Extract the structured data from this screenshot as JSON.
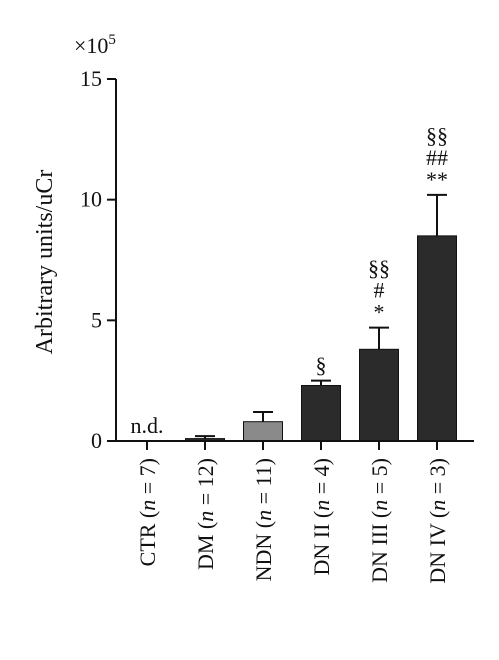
{
  "chart_data": {
    "type": "bar",
    "ylabel": "Arbitrary units/uCr",
    "y_multiplier": "×10",
    "y_multiplier_exp": "5",
    "ylim": [
      0,
      15
    ],
    "yticks": [
      "0",
      "5",
      "10",
      "15"
    ],
    "ytick_values": [
      0,
      5,
      10,
      15
    ],
    "categories": [
      {
        "name": "CTR",
        "n": "7"
      },
      {
        "name": "DM",
        "n": "12"
      },
      {
        "name": "NDN",
        "n": "11"
      },
      {
        "name": "DN II",
        "n": "4"
      },
      {
        "name": "DN III",
        "n": "5"
      },
      {
        "name": "DN IV",
        "n": "3"
      }
    ],
    "values": [
      0,
      0.1,
      0.8,
      2.3,
      3.8,
      8.5
    ],
    "errors": [
      0,
      0.1,
      0.4,
      0.2,
      0.9,
      1.7
    ],
    "bar_colors": [
      "#2b2b2b",
      "#2b2b2b",
      "#8a8a8a",
      "#2b2b2b",
      "#2b2b2b",
      "#2b2b2b"
    ],
    "annotations": [
      {
        "category": "CTR",
        "lines": [
          "n.d."
        ]
      },
      {
        "category": "DN II",
        "lines": [
          "§"
        ]
      },
      {
        "category": "DN III",
        "lines": [
          "§§",
          "#",
          "*"
        ]
      },
      {
        "category": "DN IV",
        "lines": [
          "§§",
          "##",
          "**"
        ]
      }
    ]
  }
}
